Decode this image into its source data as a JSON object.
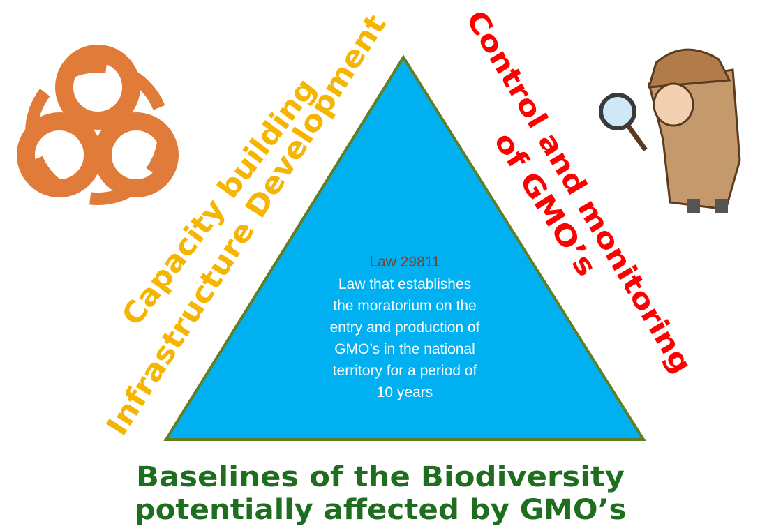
{
  "left_labels": [
    "Capacity building",
    "Infrastructure Development"
  ],
  "right_labels": [
    "Control and monitoring",
    "of GMO’s"
  ],
  "triangle": {
    "title": "Law 29811",
    "body": [
      "Law that establishes",
      "the moratorium on the",
      "entry and production of",
      "GMO’s in the national",
      "territory for a period of",
      "10 years"
    ]
  },
  "footer": [
    "Baselines of the Biodiversity",
    "potentially affected by GMO’s"
  ]
}
